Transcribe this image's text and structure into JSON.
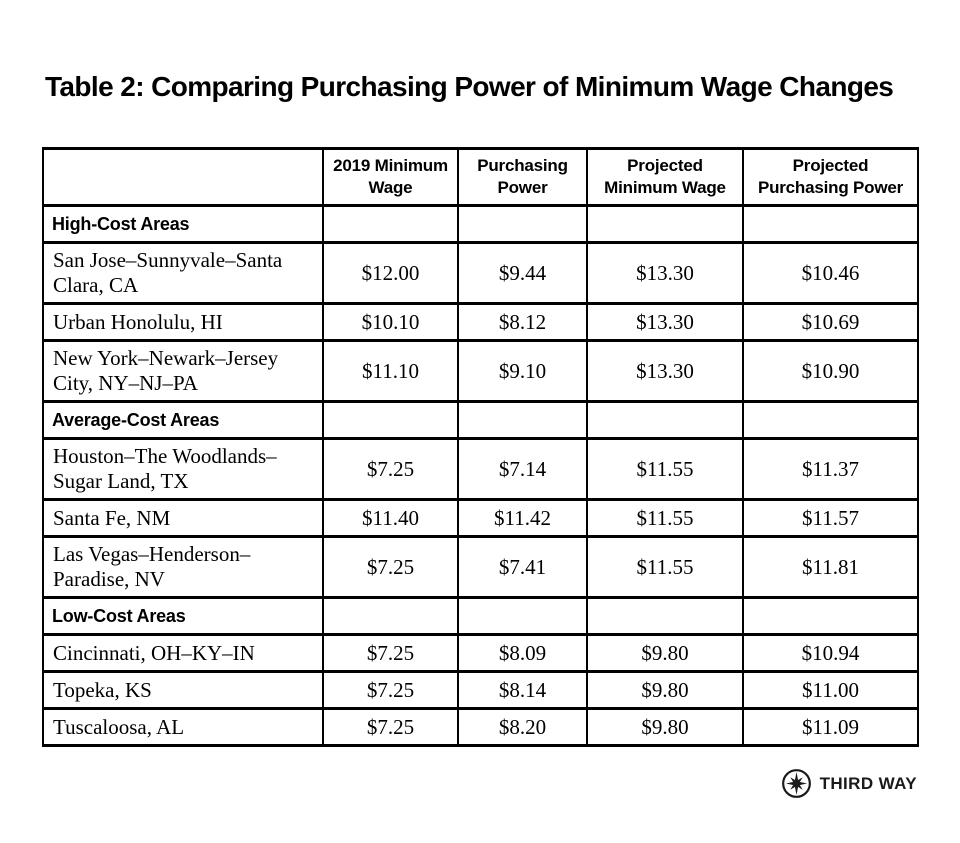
{
  "title": "Table 2: Comparing Purchasing Power of Minimum Wage Changes",
  "colors": {
    "background": "#ffffff",
    "text": "#000000",
    "border": "#000000"
  },
  "table": {
    "columns": [
      "",
      "2019 Minimum Wage",
      "Purchasing Power",
      "Projected Minimum Wage",
      "Projected Purchasing Power"
    ],
    "sections": [
      {
        "label": "High-Cost Areas",
        "rows": [
          {
            "area": "San Jose–Sunnyvale–Santa Clara, CA",
            "values": [
              "$12.00",
              "$9.44",
              "$13.30",
              "$10.46"
            ]
          },
          {
            "area": "Urban Honolulu, HI",
            "values": [
              "$10.10",
              "$8.12",
              "$13.30",
              "$10.69"
            ]
          },
          {
            "area": "New York–Newark–Jersey City, NY–NJ–PA",
            "values": [
              "$11.10",
              "$9.10",
              "$13.30",
              "$10.90"
            ]
          }
        ]
      },
      {
        "label": "Average-Cost Areas",
        "rows": [
          {
            "area": "Houston–The Woodlands–Sugar Land, TX",
            "values": [
              "$7.25",
              "$7.14",
              "$11.55",
              "$11.37"
            ]
          },
          {
            "area": "Santa Fe, NM",
            "values": [
              "$11.40",
              "$11.42",
              "$11.55",
              "$11.57"
            ]
          },
          {
            "area": "Las Vegas–Henderson–Paradise, NV",
            "values": [
              "$7.25",
              "$7.41",
              "$11.55",
              "$11.81"
            ]
          }
        ]
      },
      {
        "label": "Low-Cost Areas",
        "rows": [
          {
            "area": "Cincinnati, OH–KY–IN",
            "values": [
              "$7.25",
              "$8.09",
              "$9.80",
              "$10.94"
            ]
          },
          {
            "area": "Topeka, KS",
            "values": [
              "$7.25",
              "$8.14",
              "$9.80",
              "$11.00"
            ]
          },
          {
            "area": "Tuscaloosa, AL",
            "values": [
              "$7.25",
              "$8.20",
              "$9.80",
              "$11.09"
            ]
          }
        ]
      }
    ]
  },
  "footer": {
    "logo_text": "THIRD WAY",
    "logo_icon": "compass-star-icon"
  }
}
